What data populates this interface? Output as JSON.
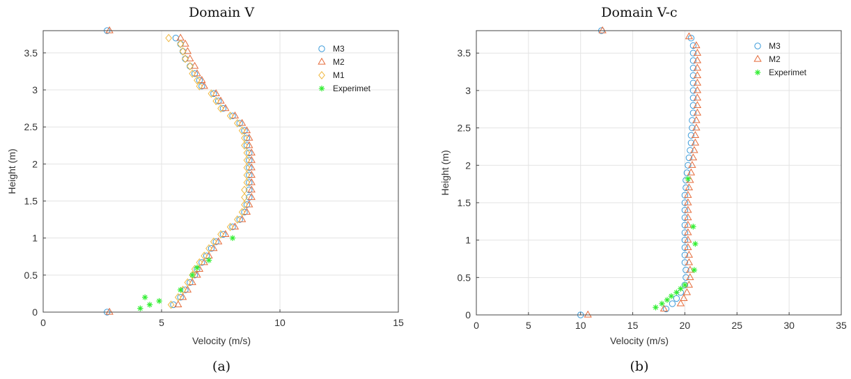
{
  "chart_data": [
    {
      "type": "scatter",
      "title": "Domain V",
      "panel_label": "(a)",
      "xlabel": "Velocity (m/s)",
      "ylabel": "Height (m)",
      "xlim": [
        0,
        15
      ],
      "ylim": [
        0,
        3.8
      ],
      "xticks": [
        "0",
        "5",
        "10",
        "15"
      ],
      "yticks": [
        "0",
        "0.5",
        "1",
        "1.5",
        "2",
        "2.5",
        "3",
        "3.5"
      ],
      "grid": true,
      "legend_position": "top-right",
      "series": [
        {
          "name": "M3",
          "marker": "circle",
          "color": "#3a9ad9",
          "points": [
            [
              2.7,
              0.0
            ],
            [
              5.5,
              0.1
            ],
            [
              5.8,
              0.2
            ],
            [
              6.0,
              0.3
            ],
            [
              6.2,
              0.4
            ],
            [
              6.4,
              0.5
            ],
            [
              6.5,
              0.58
            ],
            [
              6.7,
              0.67
            ],
            [
              6.9,
              0.76
            ],
            [
              7.1,
              0.86
            ],
            [
              7.3,
              0.95
            ],
            [
              7.6,
              1.05
            ],
            [
              8.0,
              1.15
            ],
            [
              8.3,
              1.25
            ],
            [
              8.5,
              1.35
            ],
            [
              8.6,
              1.45
            ],
            [
              8.7,
              1.55
            ],
            [
              8.7,
              1.65
            ],
            [
              8.7,
              1.75
            ],
            [
              8.7,
              1.85
            ],
            [
              8.7,
              1.95
            ],
            [
              8.7,
              2.05
            ],
            [
              8.7,
              2.15
            ],
            [
              8.6,
              2.25
            ],
            [
              8.6,
              2.35
            ],
            [
              8.5,
              2.45
            ],
            [
              8.3,
              2.55
            ],
            [
              8.0,
              2.65
            ],
            [
              7.6,
              2.75
            ],
            [
              7.4,
              2.85
            ],
            [
              7.2,
              2.95
            ],
            [
              6.7,
              3.05
            ],
            [
              6.6,
              3.13
            ],
            [
              6.4,
              3.22
            ],
            [
              6.2,
              3.32
            ],
            [
              6.0,
              3.42
            ],
            [
              5.9,
              3.52
            ],
            [
              5.8,
              3.62
            ],
            [
              5.6,
              3.7
            ],
            [
              2.7,
              3.8
            ]
          ]
        },
        {
          "name": "M2",
          "marker": "triangle",
          "color": "#e56b3a",
          "points": [
            [
              2.8,
              0.0
            ],
            [
              5.7,
              0.1
            ],
            [
              5.9,
              0.2
            ],
            [
              6.1,
              0.3
            ],
            [
              6.3,
              0.4
            ],
            [
              6.5,
              0.5
            ],
            [
              6.6,
              0.58
            ],
            [
              6.8,
              0.67
            ],
            [
              7.0,
              0.76
            ],
            [
              7.2,
              0.86
            ],
            [
              7.4,
              0.95
            ],
            [
              7.7,
              1.05
            ],
            [
              8.1,
              1.15
            ],
            [
              8.4,
              1.25
            ],
            [
              8.6,
              1.35
            ],
            [
              8.7,
              1.45
            ],
            [
              8.8,
              1.55
            ],
            [
              8.8,
              1.65
            ],
            [
              8.8,
              1.75
            ],
            [
              8.8,
              1.85
            ],
            [
              8.8,
              1.95
            ],
            [
              8.8,
              2.05
            ],
            [
              8.8,
              2.15
            ],
            [
              8.7,
              2.25
            ],
            [
              8.7,
              2.35
            ],
            [
              8.6,
              2.45
            ],
            [
              8.4,
              2.55
            ],
            [
              8.1,
              2.65
            ],
            [
              7.7,
              2.75
            ],
            [
              7.5,
              2.85
            ],
            [
              7.3,
              2.95
            ],
            [
              6.8,
              3.05
            ],
            [
              6.7,
              3.13
            ],
            [
              6.5,
              3.22
            ],
            [
              6.4,
              3.32
            ],
            [
              6.2,
              3.42
            ],
            [
              6.1,
              3.52
            ],
            [
              6.0,
              3.62
            ],
            [
              5.8,
              3.7
            ],
            [
              2.8,
              3.8
            ]
          ]
        },
        {
          "name": "M1",
          "marker": "diamond",
          "color": "#f0b840",
          "points": [
            [
              5.4,
              0.1
            ],
            [
              5.7,
              0.2
            ],
            [
              5.9,
              0.3
            ],
            [
              6.1,
              0.4
            ],
            [
              6.3,
              0.5
            ],
            [
              6.4,
              0.58
            ],
            [
              6.6,
              0.67
            ],
            [
              6.8,
              0.76
            ],
            [
              7.0,
              0.86
            ],
            [
              7.2,
              0.95
            ],
            [
              7.5,
              1.05
            ],
            [
              7.9,
              1.15
            ],
            [
              8.2,
              1.25
            ],
            [
              8.4,
              1.35
            ],
            [
              8.5,
              1.45
            ],
            [
              8.5,
              1.55
            ],
            [
              8.5,
              1.65
            ],
            [
              8.6,
              1.75
            ],
            [
              8.6,
              1.85
            ],
            [
              8.6,
              1.95
            ],
            [
              8.6,
              2.05
            ],
            [
              8.6,
              2.15
            ],
            [
              8.5,
              2.25
            ],
            [
              8.5,
              2.35
            ],
            [
              8.4,
              2.45
            ],
            [
              8.2,
              2.55
            ],
            [
              7.9,
              2.65
            ],
            [
              7.5,
              2.75
            ],
            [
              7.3,
              2.85
            ],
            [
              7.1,
              2.95
            ],
            [
              6.6,
              3.05
            ],
            [
              6.5,
              3.13
            ],
            [
              6.3,
              3.22
            ],
            [
              6.2,
              3.32
            ],
            [
              6.0,
              3.42
            ],
            [
              5.9,
              3.52
            ],
            [
              5.8,
              3.62
            ],
            [
              5.3,
              3.7
            ]
          ]
        },
        {
          "name": "Experimet",
          "marker": "star",
          "color": "#33ee33",
          "points": [
            [
              4.1,
              0.05
            ],
            [
              4.5,
              0.1
            ],
            [
              4.9,
              0.15
            ],
            [
              4.3,
              0.2
            ],
            [
              5.8,
              0.3
            ],
            [
              6.3,
              0.5
            ],
            [
              6.5,
              0.6
            ],
            [
              7.0,
              0.7
            ],
            [
              8.0,
              1.0
            ]
          ]
        }
      ]
    },
    {
      "type": "scatter",
      "title": "Domain V-c",
      "panel_label": "(b)",
      "xlabel": "Velocity (m/s)",
      "ylabel": "Height (m)",
      "xlim": [
        0,
        35
      ],
      "ylim": [
        0,
        3.8
      ],
      "xticks": [
        "0",
        "5",
        "10",
        "15",
        "20",
        "25",
        "30",
        "35"
      ],
      "yticks": [
        "0",
        "0.5",
        "1",
        "1.5",
        "2",
        "2.5",
        "3",
        "3.5"
      ],
      "grid": true,
      "legend_position": "top-right",
      "series": [
        {
          "name": "M3",
          "marker": "circle",
          "color": "#3a9ad9",
          "points": [
            [
              10.0,
              0.0
            ],
            [
              18.2,
              0.08
            ],
            [
              18.8,
              0.15
            ],
            [
              19.2,
              0.22
            ],
            [
              19.6,
              0.3
            ],
            [
              20.0,
              0.4
            ],
            [
              20.1,
              0.5
            ],
            [
              20.1,
              0.6
            ],
            [
              20.0,
              0.7
            ],
            [
              20.0,
              0.8
            ],
            [
              20.0,
              0.9
            ],
            [
              20.0,
              1.0
            ],
            [
              20.0,
              1.1
            ],
            [
              20.0,
              1.2
            ],
            [
              20.0,
              1.3
            ],
            [
              20.0,
              1.4
            ],
            [
              20.0,
              1.5
            ],
            [
              20.0,
              1.6
            ],
            [
              20.1,
              1.7
            ],
            [
              20.1,
              1.8
            ],
            [
              20.2,
              1.9
            ],
            [
              20.3,
              2.0
            ],
            [
              20.4,
              2.1
            ],
            [
              20.5,
              2.2
            ],
            [
              20.6,
              2.3
            ],
            [
              20.6,
              2.4
            ],
            [
              20.7,
              2.5
            ],
            [
              20.7,
              2.6
            ],
            [
              20.8,
              2.7
            ],
            [
              20.8,
              2.8
            ],
            [
              20.8,
              2.9
            ],
            [
              20.8,
              3.0
            ],
            [
              20.8,
              3.1
            ],
            [
              20.8,
              3.2
            ],
            [
              20.8,
              3.3
            ],
            [
              20.8,
              3.4
            ],
            [
              20.8,
              3.5
            ],
            [
              20.8,
              3.6
            ],
            [
              20.6,
              3.7
            ],
            [
              12.0,
              3.8
            ]
          ]
        },
        {
          "name": "M2",
          "marker": "triangle",
          "color": "#e56b3a",
          "points": [
            [
              10.7,
              0.0
            ],
            [
              18.0,
              0.08
            ],
            [
              19.6,
              0.15
            ],
            [
              19.9,
              0.22
            ],
            [
              20.2,
              0.3
            ],
            [
              20.4,
              0.4
            ],
            [
              20.5,
              0.5
            ],
            [
              20.5,
              0.6
            ],
            [
              20.4,
              0.7
            ],
            [
              20.4,
              0.8
            ],
            [
              20.3,
              0.9
            ],
            [
              20.3,
              1.0
            ],
            [
              20.3,
              1.1
            ],
            [
              20.3,
              1.2
            ],
            [
              20.3,
              1.3
            ],
            [
              20.3,
              1.4
            ],
            [
              20.3,
              1.5
            ],
            [
              20.3,
              1.6
            ],
            [
              20.4,
              1.7
            ],
            [
              20.5,
              1.8
            ],
            [
              20.6,
              1.9
            ],
            [
              20.7,
              2.0
            ],
            [
              20.8,
              2.1
            ],
            [
              20.9,
              2.2
            ],
            [
              21.0,
              2.3
            ],
            [
              21.0,
              2.4
            ],
            [
              21.1,
              2.5
            ],
            [
              21.1,
              2.6
            ],
            [
              21.2,
              2.7
            ],
            [
              21.2,
              2.8
            ],
            [
              21.2,
              2.9
            ],
            [
              21.2,
              3.0
            ],
            [
              21.2,
              3.1
            ],
            [
              21.2,
              3.2
            ],
            [
              21.2,
              3.3
            ],
            [
              21.2,
              3.4
            ],
            [
              21.2,
              3.5
            ],
            [
              21.1,
              3.6
            ],
            [
              20.4,
              3.72
            ],
            [
              12.1,
              3.8
            ]
          ]
        },
        {
          "name": "Experimet",
          "marker": "star",
          "color": "#33ee33",
          "points": [
            [
              17.2,
              0.1
            ],
            [
              17.8,
              0.15
            ],
            [
              18.3,
              0.2
            ],
            [
              18.7,
              0.25
            ],
            [
              19.2,
              0.3
            ],
            [
              19.6,
              0.35
            ],
            [
              20.0,
              0.4
            ],
            [
              20.9,
              0.6
            ],
            [
              21.0,
              0.95
            ],
            [
              20.8,
              1.18
            ],
            [
              20.3,
              1.82
            ]
          ]
        }
      ]
    }
  ]
}
